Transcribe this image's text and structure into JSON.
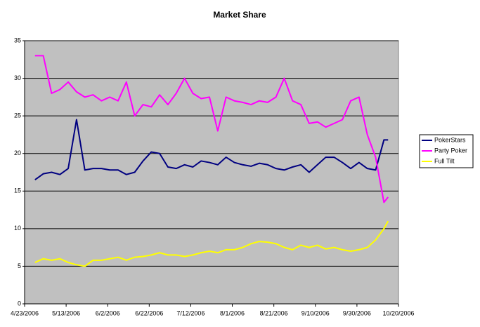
{
  "chart_data": {
    "type": "line",
    "title": "Market Share",
    "x": [
      "2006-04-28",
      "2006-05-02",
      "2006-05-06",
      "2006-05-10",
      "2006-05-14",
      "2006-05-18",
      "2006-05-22",
      "2006-05-26",
      "2006-05-30",
      "2006-06-03",
      "2006-06-07",
      "2006-06-11",
      "2006-06-15",
      "2006-06-19",
      "2006-06-23",
      "2006-06-27",
      "2006-07-01",
      "2006-07-05",
      "2006-07-09",
      "2006-07-13",
      "2006-07-17",
      "2006-07-21",
      "2006-07-25",
      "2006-07-29",
      "2006-08-02",
      "2006-08-06",
      "2006-08-10",
      "2006-08-14",
      "2006-08-18",
      "2006-08-22",
      "2006-08-26",
      "2006-08-30",
      "2006-09-03",
      "2006-09-07",
      "2006-09-11",
      "2006-09-15",
      "2006-09-19",
      "2006-09-23",
      "2006-09-27",
      "2006-10-01",
      "2006-10-05",
      "2006-10-09",
      "2006-10-13",
      "2006-10-15"
    ],
    "series": [
      {
        "name": "PokerStars",
        "color": "#000080",
        "values": [
          16.5,
          17.3,
          17.5,
          17.2,
          18,
          24.5,
          17.8,
          18,
          18,
          17.8,
          17.8,
          17.2,
          17.5,
          19,
          20.2,
          20,
          18.2,
          18,
          18.5,
          18.2,
          19,
          18.8,
          18.5,
          19.5,
          18.8,
          18.5,
          18.3,
          18.7,
          18.5,
          18,
          17.8,
          18.2,
          18.5,
          17.5,
          18.5,
          19.5,
          19.5,
          18.8,
          18,
          18.8,
          18,
          17.8,
          21.8,
          21.8
        ]
      },
      {
        "name": "Party Poker",
        "color": "#ff00ff",
        "values": [
          33,
          33,
          28,
          28.5,
          29.5,
          28.2,
          27.5,
          27.8,
          27,
          27.5,
          27,
          29.5,
          25,
          26.5,
          26.2,
          27.8,
          26.5,
          28,
          30,
          28,
          27.3,
          27.5,
          23,
          27.5,
          27,
          26.8,
          26.5,
          27,
          26.8,
          27.5,
          30,
          27,
          26.5,
          24,
          24.2,
          23.5,
          24,
          24.5,
          27,
          27.5,
          22.5,
          19.5,
          13.5,
          14.2
        ]
      },
      {
        "name": "Full Tilt",
        "color": "#ffff00",
        "values": [
          5.5,
          6,
          5.8,
          6,
          5.5,
          5.2,
          5,
          5.8,
          5.8,
          6,
          6.2,
          5.8,
          6.2,
          6.3,
          6.5,
          6.8,
          6.5,
          6.5,
          6.3,
          6.5,
          6.8,
          7,
          6.8,
          7.2,
          7.2,
          7.5,
          8,
          8.3,
          8.2,
          8,
          7.5,
          7.2,
          7.8,
          7.5,
          7.8,
          7.3,
          7.5,
          7.2,
          7,
          7.2,
          7.5,
          8.5,
          10,
          11
        ]
      }
    ],
    "xlim": [
      "2006-04-23",
      "2006-10-20"
    ],
    "xticks": [
      {
        "value": "2006-04-23",
        "label": "4/23/2006"
      },
      {
        "value": "2006-05-13",
        "label": "5/13/2006"
      },
      {
        "value": "2006-06-02",
        "label": "6/2/2006"
      },
      {
        "value": "2006-06-22",
        "label": "6/22/2006"
      },
      {
        "value": "2006-07-12",
        "label": "7/12/2006"
      },
      {
        "value": "2006-08-01",
        "label": "8/1/2006"
      },
      {
        "value": "2006-08-21",
        "label": "8/21/2006"
      },
      {
        "value": "2006-09-10",
        "label": "9/10/2006"
      },
      {
        "value": "2006-09-30",
        "label": "9/30/2006"
      },
      {
        "value": "2006-10-20",
        "label": "10/20/2006"
      }
    ],
    "ylim": [
      0,
      35
    ],
    "yticks": [
      0,
      5,
      10,
      15,
      20,
      25,
      30,
      35
    ],
    "grid": true,
    "legend_position": "right",
    "plot_background": "#c0c0c0"
  }
}
